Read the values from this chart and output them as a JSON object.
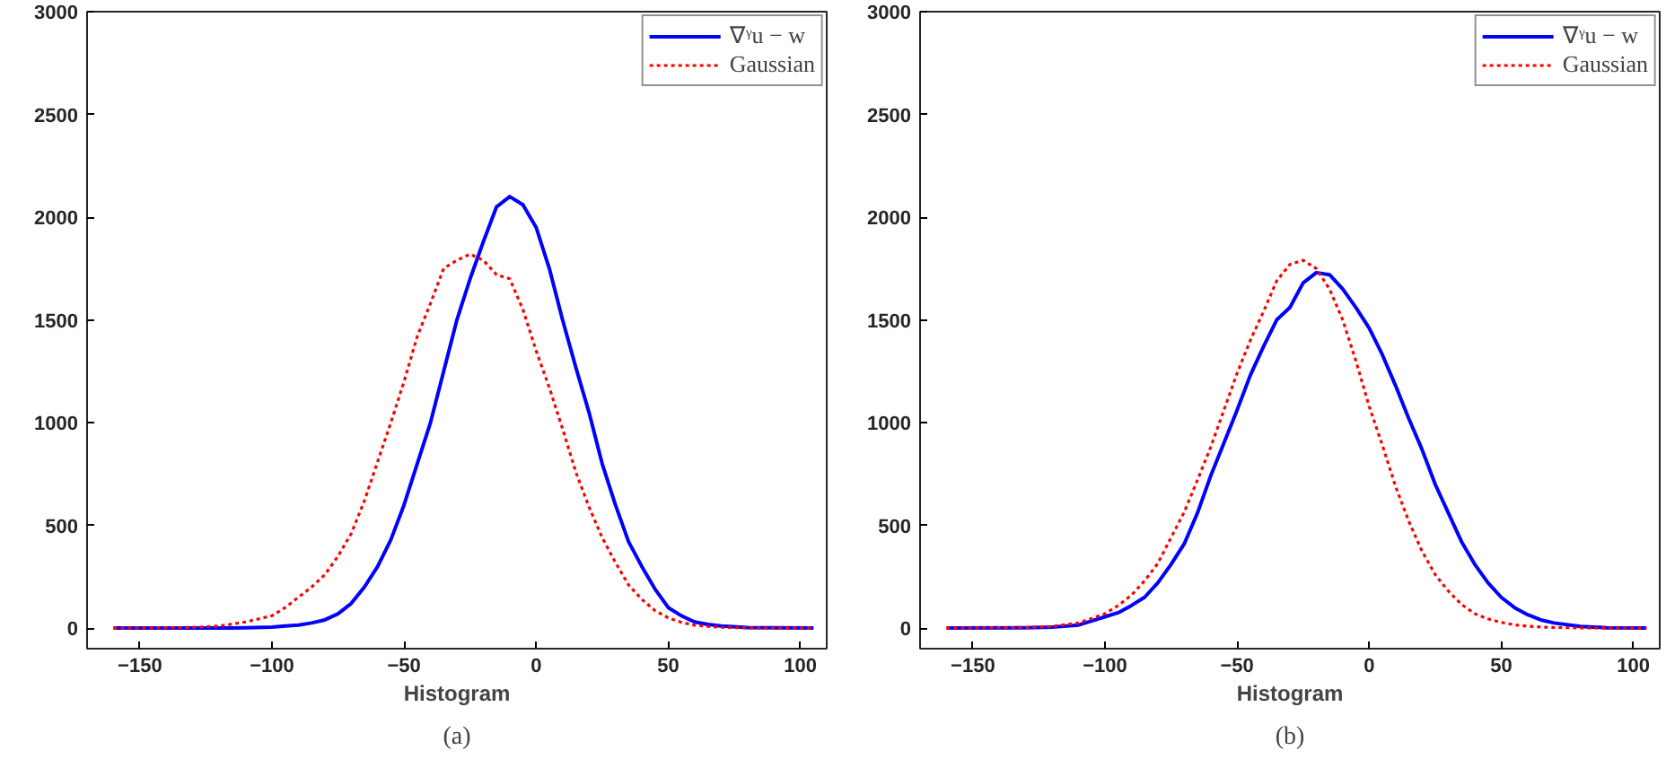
{
  "chart_data": [
    {
      "type": "line",
      "xlabel": "Histogram",
      "annotations": [
        "(a)"
      ],
      "legend": "top right",
      "grid": false,
      "xlim": [
        -170,
        110
      ],
      "ylim": [
        -100,
        3000
      ],
      "xticks": [
        -150,
        -100,
        -50,
        0,
        50,
        100
      ],
      "yticks": [
        0,
        500,
        1000,
        1500,
        2000,
        2500,
        3000
      ],
      "x": [
        -160,
        -130,
        -120,
        -110,
        -100,
        -95,
        -90,
        -85,
        -80,
        -75,
        -70,
        -65,
        -60,
        -55,
        -50,
        -45,
        -40,
        -35,
        -30,
        -25,
        -20,
        -15,
        -10,
        -5,
        0,
        5,
        10,
        15,
        20,
        25,
        30,
        35,
        40,
        45,
        50,
        55,
        60,
        65,
        70,
        80,
        90,
        105
      ],
      "series": [
        {
          "name": "∇ᵞu − w",
          "color": "#0000ff",
          "line_style": "solid",
          "values": [
            0,
            0,
            0,
            2,
            5,
            10,
            15,
            25,
            40,
            70,
            120,
            200,
            300,
            430,
            600,
            800,
            1000,
            1250,
            1500,
            1700,
            1880,
            2050,
            2100,
            2060,
            1950,
            1750,
            1500,
            1270,
            1050,
            800,
            600,
            420,
            300,
            190,
            100,
            60,
            30,
            18,
            10,
            3,
            1,
            0
          ]
        },
        {
          "name": "Gaussian",
          "color": "#ff0000",
          "line_style": "dotted",
          "values": [
            0,
            3,
            10,
            30,
            60,
            100,
            150,
            200,
            260,
            350,
            460,
            620,
            810,
            1000,
            1200,
            1420,
            1580,
            1750,
            1790,
            1820,
            1790,
            1720,
            1700,
            1550,
            1350,
            1170,
            970,
            760,
            590,
            440,
            320,
            210,
            140,
            85,
            50,
            28,
            14,
            8,
            4,
            1,
            0,
            0
          ]
        }
      ]
    },
    {
      "type": "line",
      "xlabel": "Histogram",
      "annotations": [
        "(b)"
      ],
      "legend": "top right",
      "grid": false,
      "xlim": [
        -170,
        110
      ],
      "ylim": [
        -100,
        3000
      ],
      "xticks": [
        -150,
        -100,
        -50,
        0,
        50,
        100
      ],
      "yticks": [
        0,
        500,
        1000,
        1500,
        2000,
        2500,
        3000
      ],
      "x": [
        -160,
        -130,
        -120,
        -110,
        -100,
        -95,
        -90,
        -85,
        -80,
        -75,
        -70,
        -65,
        -60,
        -55,
        -50,
        -45,
        -40,
        -35,
        -30,
        -25,
        -20,
        -15,
        -10,
        -5,
        0,
        5,
        10,
        15,
        20,
        25,
        30,
        35,
        40,
        45,
        50,
        55,
        60,
        65,
        70,
        80,
        90,
        105
      ],
      "series": [
        {
          "name": "∇ᵞu − w",
          "color": "#0000ff",
          "line_style": "solid",
          "values": [
            0,
            2,
            5,
            15,
            55,
            75,
            110,
            150,
            220,
            310,
            410,
            560,
            740,
            900,
            1060,
            1230,
            1370,
            1500,
            1560,
            1680,
            1730,
            1720,
            1650,
            1560,
            1460,
            1330,
            1180,
            1020,
            870,
            700,
            560,
            420,
            310,
            220,
            150,
            100,
            65,
            40,
            25,
            8,
            2,
            0
          ]
        },
        {
          "name": "Gaussian",
          "color": "#ff0000",
          "line_style": "dotted",
          "values": [
            0,
            3,
            8,
            25,
            70,
            110,
            160,
            230,
            315,
            440,
            565,
            720,
            880,
            1060,
            1240,
            1400,
            1540,
            1690,
            1770,
            1790,
            1750,
            1650,
            1500,
            1300,
            1080,
            890,
            690,
            520,
            375,
            260,
            180,
            115,
            70,
            45,
            28,
            16,
            9,
            5,
            3,
            1,
            0,
            0
          ]
        }
      ]
    }
  ]
}
